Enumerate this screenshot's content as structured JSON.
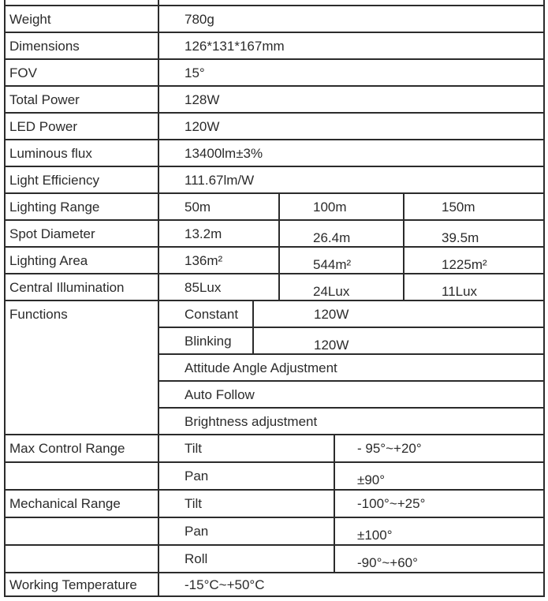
{
  "table": {
    "border_color": "#2b2b2b",
    "text_color": "#2b2b2b",
    "simple_rows": [
      {
        "label": "Weight",
        "value": "780g"
      },
      {
        "label": "Dimensions",
        "value": "126*131*167mm"
      },
      {
        "label": "FOV",
        "value": "15°"
      },
      {
        "label": "Total Power",
        "value": "128W"
      },
      {
        "label": "LED Power",
        "value": "120W"
      },
      {
        "label": "Luminous flux",
        "value": "13400lm±3%"
      },
      {
        "label": "Light Efficiency",
        "value": "111.67lm/W"
      }
    ],
    "range_rows": [
      {
        "label": "Lighting Range",
        "values": [
          "50m",
          "100m",
          "150m"
        ]
      },
      {
        "label": "Spot Diameter",
        "values": [
          "13.2m",
          "26.4m",
          "39.5m"
        ]
      },
      {
        "label": "Lighting Area",
        "values": [
          "136m²",
          "544m²",
          "1225m²"
        ]
      },
      {
        "label": "Central Illumination",
        "values": [
          "85Lux",
          "24Lux",
          "11Lux"
        ]
      }
    ],
    "functions": {
      "label": "Functions",
      "modes": [
        {
          "name": "Constant",
          "power": "120W"
        },
        {
          "name": "Blinking",
          "power": "120W"
        }
      ],
      "features": [
        "Attitude Angle Adjustment",
        "Auto Follow",
        "Brightness adjustment"
      ]
    },
    "control_rows": [
      {
        "label": "Max Control Range",
        "axis": "Tilt",
        "value": "- 95°~+20°"
      },
      {
        "label": "",
        "axis": "Pan",
        "value": "±90°"
      },
      {
        "label": "Mechanical Range",
        "axis": "Tilt",
        "value": "-100°~+25°"
      },
      {
        "label": "",
        "axis": "Pan",
        "value": "±100°"
      },
      {
        "label": "",
        "axis": "Roll",
        "value": "-90°~+60°"
      }
    ],
    "working_temperature": {
      "label": "Working Temperature",
      "value": "-15°C~+50°C"
    }
  }
}
